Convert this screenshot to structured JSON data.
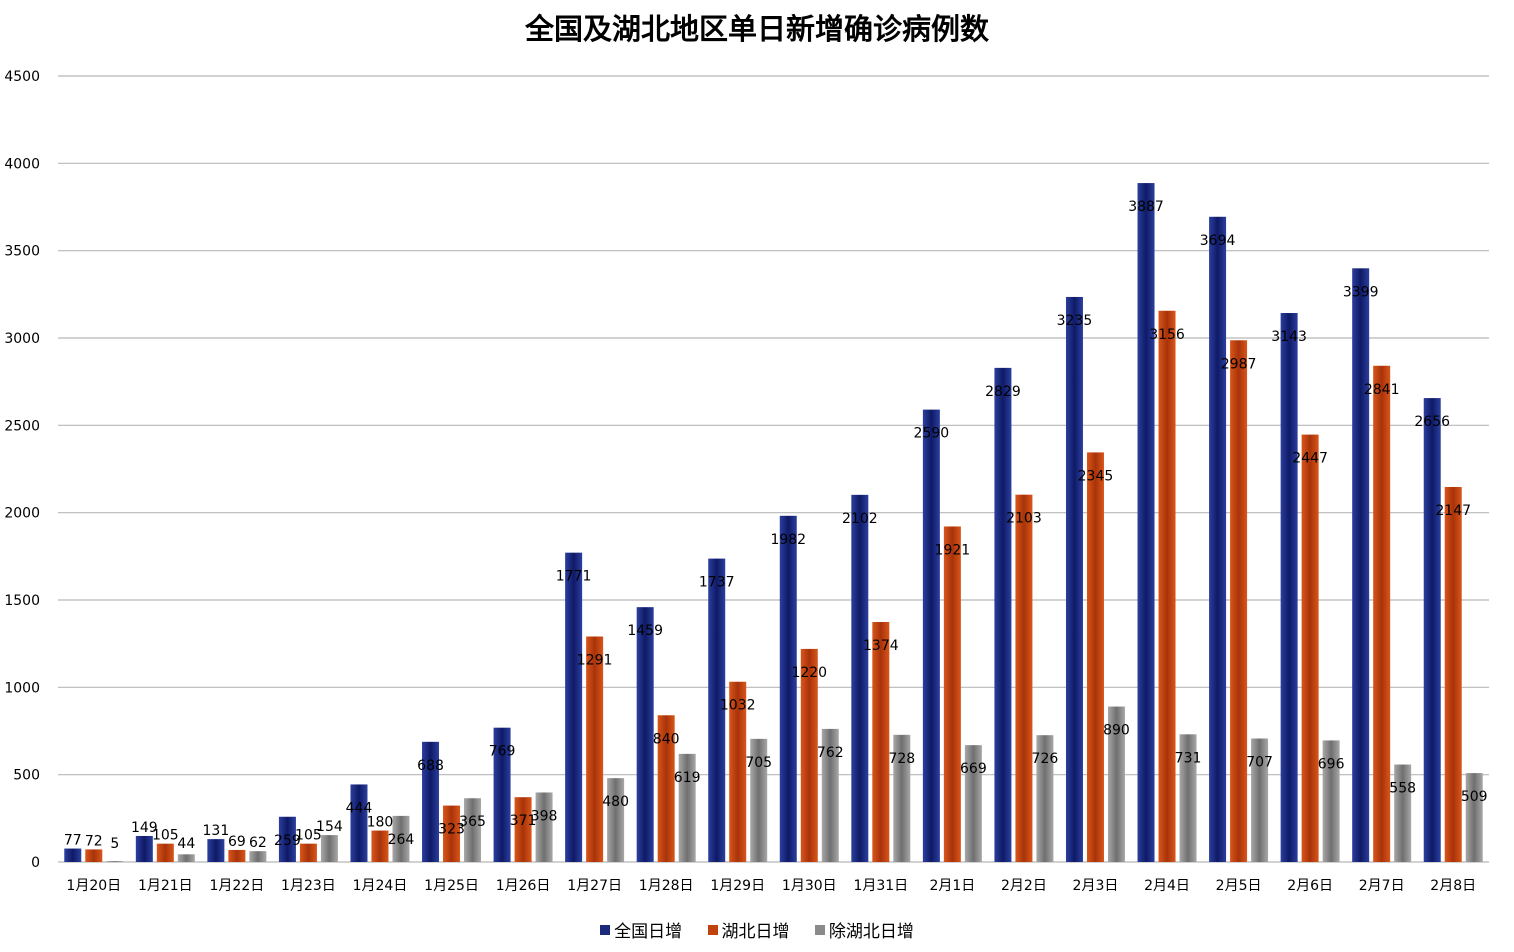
{
  "chart_data": {
    "type": "bar",
    "title": "全国及湖北地区单日新增确诊病例数",
    "xlabel": "",
    "ylabel": "",
    "ylim": [
      0,
      4500
    ],
    "yticks": [
      0,
      500,
      1000,
      1500,
      2000,
      2500,
      3000,
      3500,
      4000,
      4500
    ],
    "grid": true,
    "legend_position": "bottom",
    "categories": [
      "1月20日",
      "1月21日",
      "1月22日",
      "1月23日",
      "1月24日",
      "1月25日",
      "1月26日",
      "1月27日",
      "1月28日",
      "1月29日",
      "1月30日",
      "1月31日",
      "2月1日",
      "2月2日",
      "2月3日",
      "2月4日",
      "2月5日",
      "2月6日",
      "2月7日",
      "2月8日"
    ],
    "series": [
      {
        "name": "全国日增",
        "color": "#1b2a7a",
        "values": [
          77,
          149,
          131,
          259,
          444,
          688,
          769,
          1771,
          1459,
          1737,
          1982,
          2102,
          2590,
          2829,
          3235,
          3887,
          3694,
          3143,
          3399,
          2656
        ]
      },
      {
        "name": "湖北日增",
        "color": "#c0430e",
        "values": [
          72,
          105,
          69,
          105,
          180,
          323,
          371,
          1291,
          840,
          1032,
          1220,
          1374,
          1921,
          2103,
          2345,
          3156,
          2987,
          2447,
          2841,
          2147
        ]
      },
      {
        "name": "除湖北日增",
        "color": "#8a8a8a",
        "values": [
          5,
          44,
          62,
          154,
          264,
          365,
          398,
          480,
          619,
          705,
          762,
          728,
          669,
          726,
          890,
          731,
          707,
          696,
          558,
          509
        ]
      }
    ]
  }
}
